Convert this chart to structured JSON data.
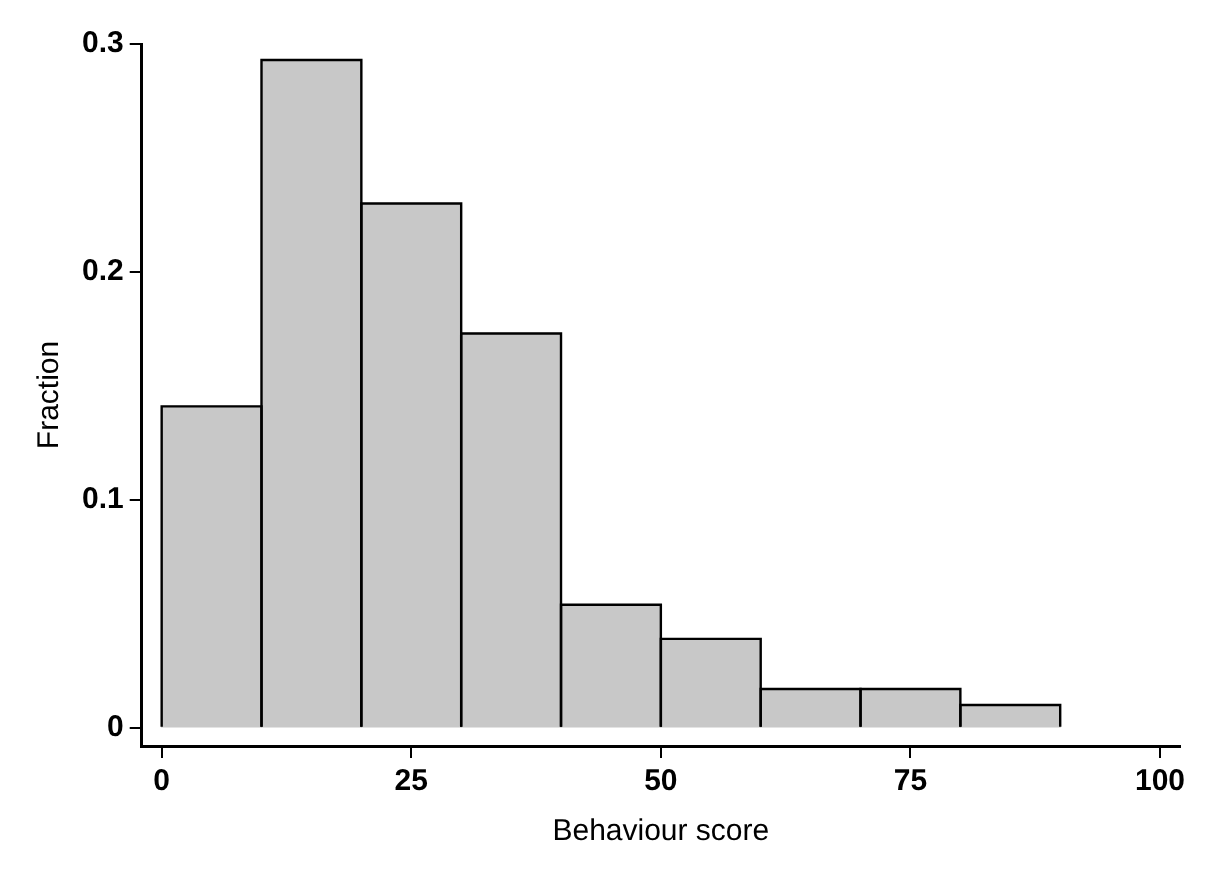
{
  "chart_data": {
    "type": "histogram",
    "xlabel": "Behaviour score",
    "ylabel": "Fraction",
    "bins": [
      0,
      10,
      20,
      30,
      40,
      50,
      60,
      70,
      80,
      90
    ],
    "values": [
      0.141,
      0.293,
      0.23,
      0.173,
      0.054,
      0.039,
      0.017,
      0.017,
      0.01
    ],
    "color": "#c8c8c8",
    "xlim": [
      -2,
      102
    ],
    "xticks": [
      0,
      25,
      50,
      75,
      100
    ],
    "ylim": [
      -0.008,
      0.3
    ],
    "yticks": [
      0,
      0.1,
      0.2,
      0.3
    ],
    "grid": false,
    "legend": false
  }
}
